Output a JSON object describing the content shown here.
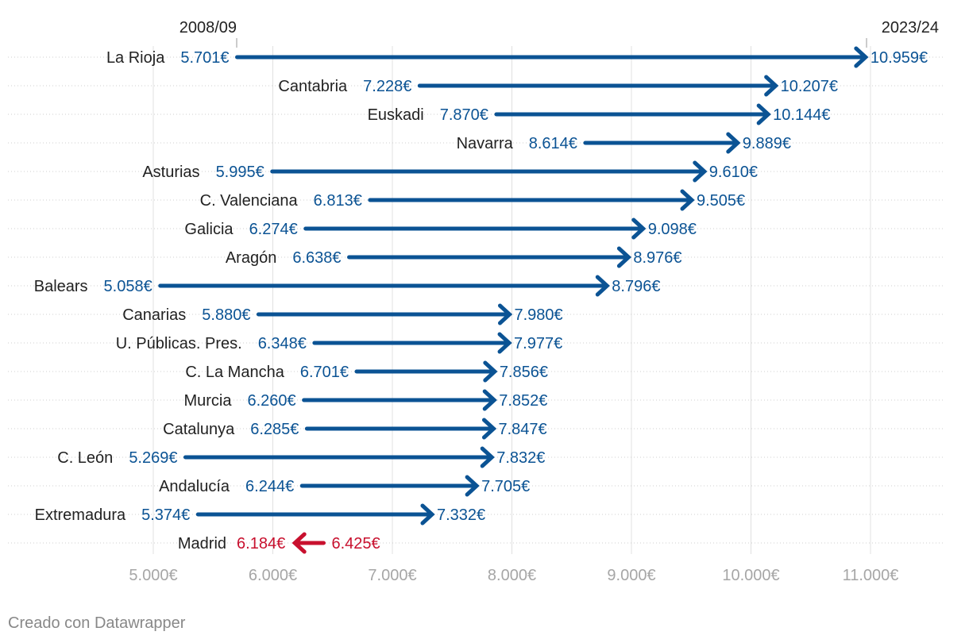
{
  "chart_data": {
    "type": "arrow",
    "start_label": "2008/09",
    "end_label": "2023/24",
    "x_ticks": [
      {
        "value": 5000,
        "label": "5.000€"
      },
      {
        "value": 6000,
        "label": "6.000€"
      },
      {
        "value": 7000,
        "label": "7.000€"
      },
      {
        "value": 8000,
        "label": "8.000€"
      },
      {
        "value": 9000,
        "label": "9.000€"
      },
      {
        "value": 10000,
        "label": "10.000€"
      },
      {
        "value": 11000,
        "label": "11.000€"
      }
    ],
    "xlim": [
      5000,
      11000
    ],
    "rows": [
      {
        "category": "La Rioja",
        "start": 5701,
        "end": 10959,
        "start_label": "5.701€",
        "end_label": "10.959€"
      },
      {
        "category": "Cantabria",
        "start": 7228,
        "end": 10207,
        "start_label": "7.228€",
        "end_label": "10.207€"
      },
      {
        "category": "Euskadi",
        "start": 7870,
        "end": 10144,
        "start_label": "7.870€",
        "end_label": "10.144€"
      },
      {
        "category": "Navarra",
        "start": 8614,
        "end": 9889,
        "start_label": "8.614€",
        "end_label": "9.889€"
      },
      {
        "category": "Asturias",
        "start": 5995,
        "end": 9610,
        "start_label": "5.995€",
        "end_label": "9.610€"
      },
      {
        "category": "C. Valenciana",
        "start": 6813,
        "end": 9505,
        "start_label": "6.813€",
        "end_label": "9.505€"
      },
      {
        "category": "Galicia",
        "start": 6274,
        "end": 9098,
        "start_label": "6.274€",
        "end_label": "9.098€"
      },
      {
        "category": "Aragón",
        "start": 6638,
        "end": 8976,
        "start_label": "6.638€",
        "end_label": "8.976€"
      },
      {
        "category": "Balears",
        "start": 5058,
        "end": 8796,
        "start_label": "5.058€",
        "end_label": "8.796€"
      },
      {
        "category": "Canarias",
        "start": 5880,
        "end": 7980,
        "start_label": "5.880€",
        "end_label": "7.980€"
      },
      {
        "category": "U. Públicas. Pres.",
        "start": 6348,
        "end": 7977,
        "start_label": "6.348€",
        "end_label": "7.977€"
      },
      {
        "category": "C. La Mancha",
        "start": 6701,
        "end": 7856,
        "start_label": "6.701€",
        "end_label": "7.856€"
      },
      {
        "category": "Murcia",
        "start": 6260,
        "end": 7852,
        "start_label": "6.260€",
        "end_label": "7.852€"
      },
      {
        "category": "Catalunya",
        "start": 6285,
        "end": 7847,
        "start_label": "6.285€",
        "end_label": "7.847€"
      },
      {
        "category": "C. León",
        "start": 5269,
        "end": 7832,
        "start_label": "5.269€",
        "end_label": "7.832€"
      },
      {
        "category": "Andalucía",
        "start": 6244,
        "end": 7705,
        "start_label": "6.244€",
        "end_label": "7.705€"
      },
      {
        "category": "Extremadura",
        "start": 5374,
        "end": 7332,
        "start_label": "5.374€",
        "end_label": "7.332€"
      },
      {
        "category": "Madrid",
        "start": 6425,
        "end": 6184,
        "start_label": "6.425€",
        "end_label": "6.184€"
      }
    ],
    "colors": {
      "increase": "#0b5394",
      "decrease": "#c8102e",
      "grid": "#e0e0e0",
      "tick_text": "#a6a6a6",
      "label_text": "#222222"
    }
  },
  "footer": "Creado con Datawrapper"
}
